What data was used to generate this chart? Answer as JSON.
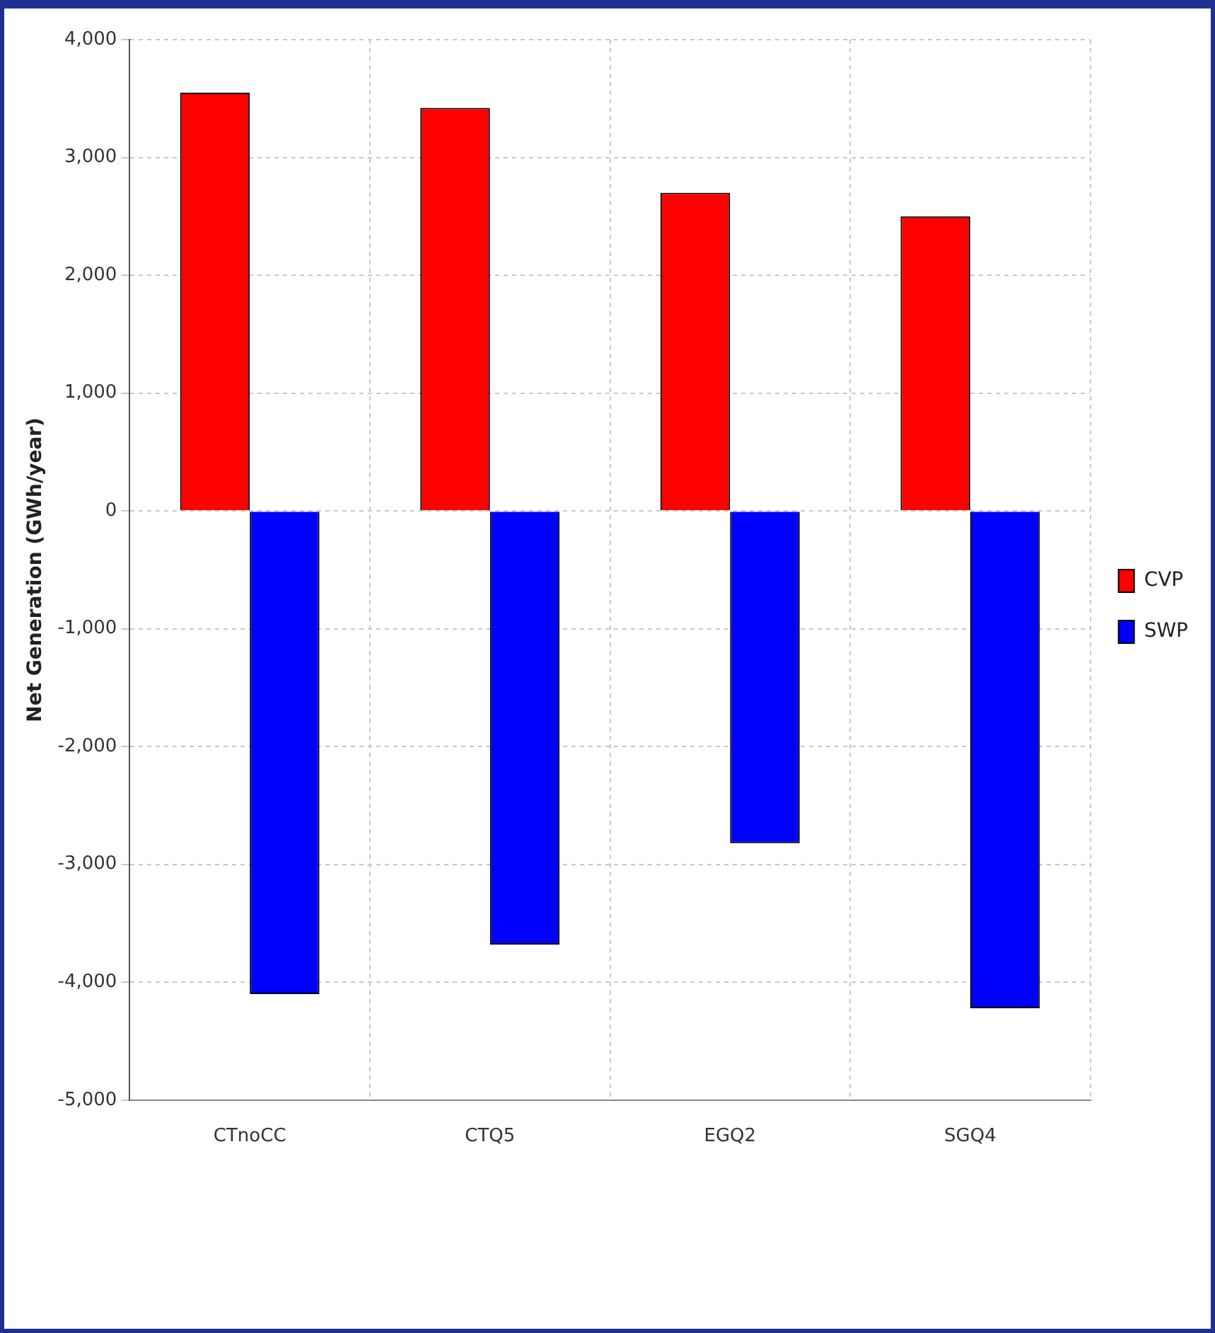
{
  "chart_data": {
    "type": "bar",
    "ylabel": "Net Generation (GWh/year)",
    "categories": [
      "CTnoCC",
      "CTQ5",
      "EGQ2",
      "SGQ4"
    ],
    "series": [
      {
        "name": "CVP",
        "color": "#ff0000",
        "values": [
          3550,
          3420,
          2700,
          2500
        ]
      },
      {
        "name": "SWP",
        "color": "#0000ff",
        "values": [
          -4100,
          -3680,
          -2820,
          -4220
        ]
      }
    ],
    "ylim": [
      -5000,
      4000
    ],
    "yticks": [
      {
        "value": -5000,
        "label": "-5,000"
      },
      {
        "value": -4000,
        "label": "-4,000"
      },
      {
        "value": -3000,
        "label": "-3,000"
      },
      {
        "value": -2000,
        "label": "-2,000"
      },
      {
        "value": -1000,
        "label": "-1,000"
      },
      0,
      {
        "value": 1000,
        "label": "1,000"
      },
      {
        "value": 2000,
        "label": "2,000"
      },
      {
        "value": 3000,
        "label": "3,000"
      },
      {
        "value": 4000,
        "label": "4,000"
      }
    ],
    "grid": true,
    "legend": "right"
  }
}
